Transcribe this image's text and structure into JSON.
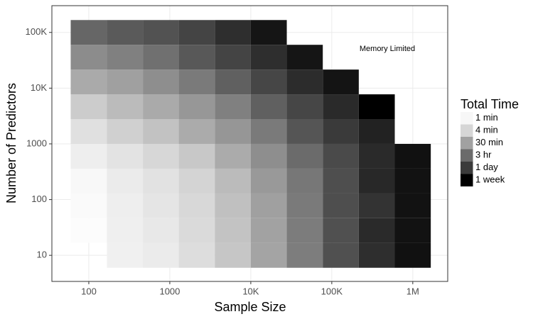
{
  "chart_data": {
    "type": "heatmap",
    "x_label": "Sample Size",
    "y_label": "Number of Predictors",
    "annotation": "Memory Limited",
    "x": [
      100,
      280,
      774,
      2154,
      5995,
      16681,
      46416,
      129155,
      359381,
      1000000
    ],
    "y": [
      10,
      28,
      77,
      215,
      599,
      1668,
      4642,
      12915,
      35938,
      100000
    ],
    "values": [
      [
        null,
        81,
        100,
        178,
        440,
        1590,
        5900,
        35000,
        132000,
        348000
      ],
      [
        49,
        85,
        112,
        205,
        500,
        1750,
        6200,
        35000,
        151000,
        333000
      ],
      [
        53,
        88,
        128,
        218,
        560,
        1880,
        6600,
        38000,
        113000,
        333000
      ],
      [
        58,
        100,
        145,
        260,
        675,
        2370,
        7250,
        38000,
        162000,
        333000
      ],
      [
        88,
        138,
        230,
        405,
        1240,
        3400,
        10700,
        46000,
        151000,
        348000
      ],
      [
        158,
        300,
        516,
        1240,
        2620,
        6600,
        28000,
        89000,
        200000,
        null
      ],
      [
        355,
        675,
        1290,
        2530,
        5400,
        17300,
        53000,
        151000,
        604800,
        null
      ],
      [
        1290,
        1880,
        3400,
        6600,
        17300,
        53000,
        141000,
        309000,
        null,
        null
      ],
      [
        3630,
        5400,
        9100,
        24500,
        59000,
        132000,
        302000,
        null,
        null,
        null
      ],
      [
        13300,
        22400,
        32000,
        59000,
        132000,
        302000,
        null,
        null,
        null,
        null
      ]
    ],
    "x_scale": "log",
    "y_scale": "log",
    "xlim": [
      35,
      2700000
    ],
    "ylim": [
      3.4,
      302000
    ],
    "xticks": [
      100,
      1000,
      {
        "value": 10000,
        "label": "10K"
      },
      {
        "value": 100000,
        "label": "100K"
      },
      {
        "value": 1000000,
        "label": "1M"
      }
    ],
    "yticks": [
      10,
      100,
      1000,
      {
        "value": 10000,
        "label": "10K"
      },
      {
        "value": 100000,
        "label": "100K"
      }
    ],
    "grid": true,
    "legend": {
      "title": "Total Time",
      "position": "right",
      "keys": [
        {
          "value": 60,
          "label": "1 min",
          "color": "#f7f7f7"
        },
        {
          "value": 240,
          "label": "4 min",
          "color": "#d6d6d6"
        },
        {
          "value": 1800,
          "label": "30 min",
          "color": "#a1a1a1"
        },
        {
          "value": 10800,
          "label": "3 hr",
          "color": "#6b6b6b"
        },
        {
          "value": 86400,
          "label": "1 day",
          "color": "#3b3b3b"
        },
        {
          "value": 604800,
          "label": "1 week",
          "color": "#000000"
        }
      ]
    }
  }
}
